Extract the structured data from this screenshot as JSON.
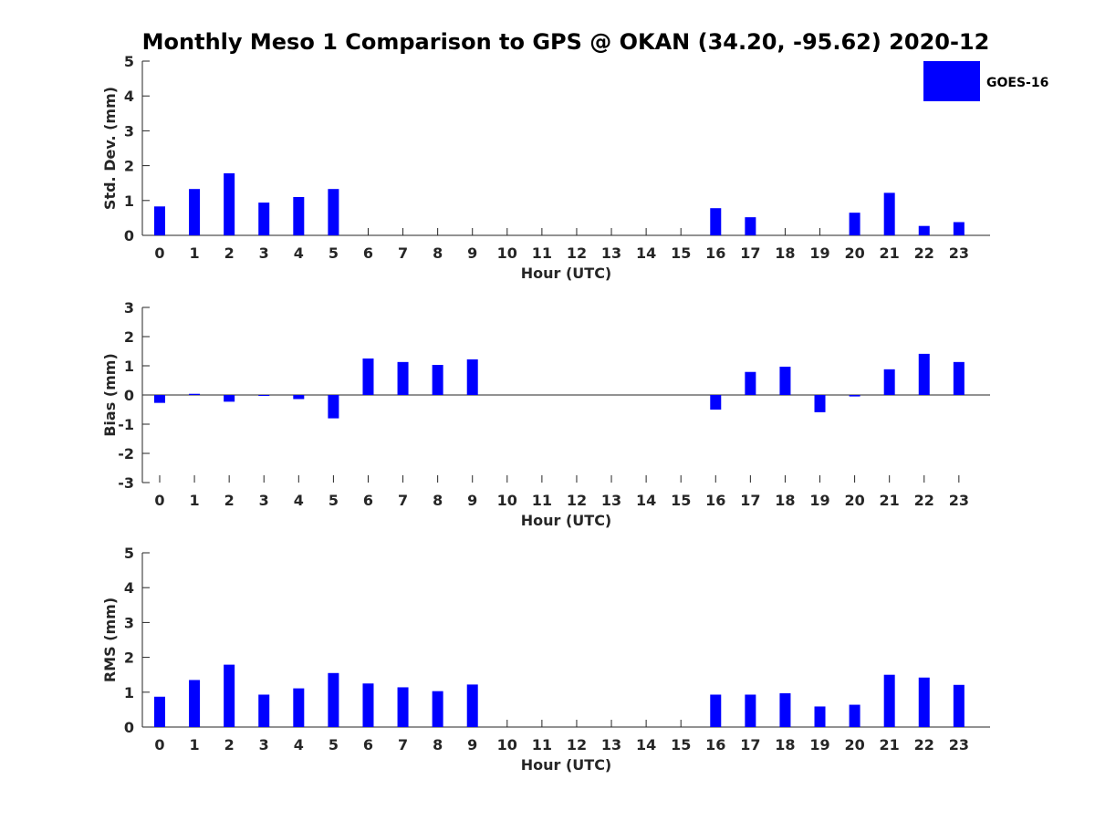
{
  "chart_data": [
    {
      "type": "bar",
      "title": "Monthly Meso 1 Comparison to GPS @ OKAN (34.20, -95.62) 2020-12",
      "xlabel": "Hour (UTC)",
      "ylabel": "Std. Dev. (mm)",
      "categories": [
        "0",
        "1",
        "2",
        "3",
        "4",
        "5",
        "6",
        "7",
        "8",
        "9",
        "10",
        "11",
        "12",
        "13",
        "14",
        "15",
        "16",
        "17",
        "18",
        "19",
        "20",
        "21",
        "22",
        "23"
      ],
      "ylim": [
        0,
        5
      ],
      "yticks": [
        0,
        1,
        2,
        3,
        4,
        5
      ],
      "series": [
        {
          "name": "GOES-16",
          "values": [
            0.83,
            1.33,
            1.78,
            0.94,
            1.1,
            1.33,
            null,
            null,
            null,
            null,
            null,
            null,
            null,
            null,
            null,
            null,
            0.78,
            0.52,
            null,
            null,
            0.65,
            1.22,
            0.27,
            0.38
          ]
        }
      ]
    },
    {
      "type": "bar",
      "xlabel": "Hour (UTC)",
      "ylabel": "Bias (mm)",
      "categories": [
        "0",
        "1",
        "2",
        "3",
        "4",
        "5",
        "6",
        "7",
        "8",
        "9",
        "10",
        "11",
        "12",
        "13",
        "14",
        "15",
        "16",
        "17",
        "18",
        "19",
        "20",
        "21",
        "22",
        "23"
      ],
      "ylim": [
        -3,
        3
      ],
      "yticks": [
        -3,
        -2,
        -1,
        0,
        1,
        2,
        3
      ],
      "series": [
        {
          "name": "GOES-16",
          "values": [
            -0.27,
            0.04,
            -0.23,
            0.0,
            -0.14,
            -0.8,
            1.25,
            1.13,
            1.03,
            1.22,
            null,
            null,
            null,
            null,
            null,
            null,
            -0.5,
            0.79,
            0.97,
            -0.59,
            -0.05,
            0.88,
            1.41,
            1.13
          ]
        }
      ]
    },
    {
      "type": "bar",
      "xlabel": "Hour (UTC)",
      "ylabel": "RMS (mm)",
      "categories": [
        "0",
        "1",
        "2",
        "3",
        "4",
        "5",
        "6",
        "7",
        "8",
        "9",
        "10",
        "11",
        "12",
        "13",
        "14",
        "15",
        "16",
        "17",
        "18",
        "19",
        "20",
        "21",
        "22",
        "23"
      ],
      "ylim": [
        0,
        5
      ],
      "yticks": [
        0,
        1,
        2,
        3,
        4,
        5
      ],
      "series": [
        {
          "name": "GOES-16",
          "values": [
            0.87,
            1.35,
            1.79,
            0.93,
            1.11,
            1.55,
            1.25,
            1.14,
            1.03,
            1.22,
            null,
            null,
            null,
            null,
            null,
            null,
            0.93,
            0.93,
            0.97,
            0.59,
            0.64,
            1.5,
            1.42,
            1.21
          ]
        }
      ]
    }
  ],
  "legend": {
    "label": "GOES-16",
    "placement": "top-right"
  },
  "colors": {
    "bar": "#0000ff",
    "axis": "#262626"
  }
}
